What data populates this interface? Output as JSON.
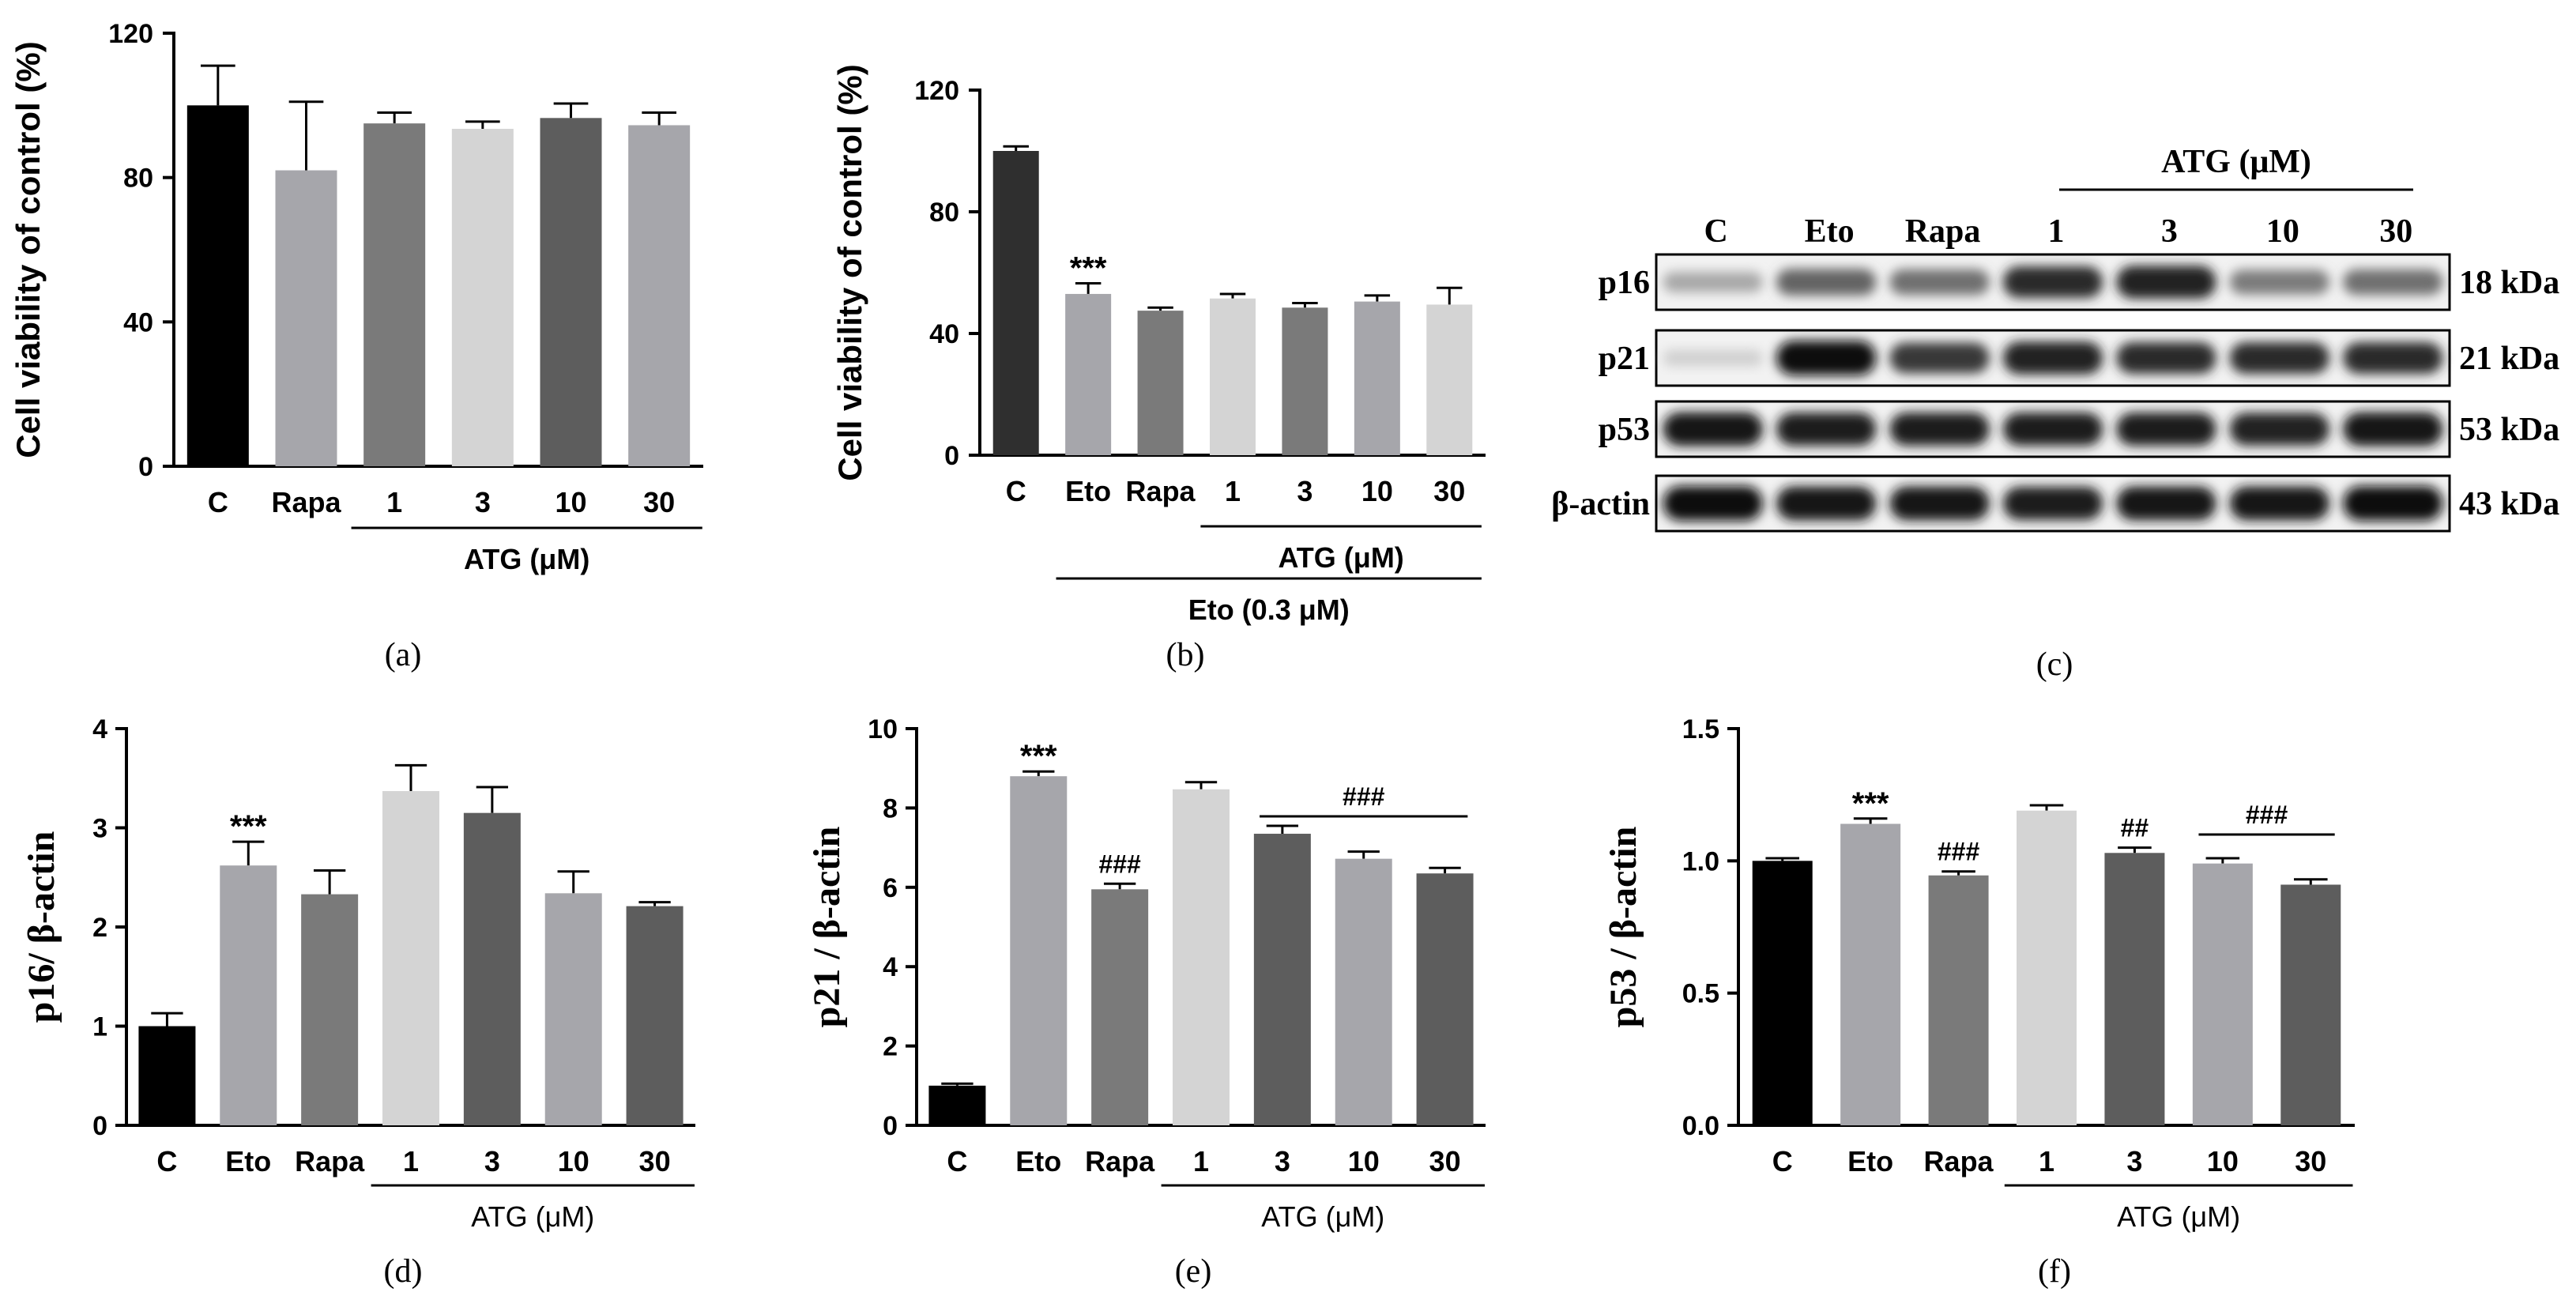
{
  "charts": [
    {
      "type": "bar",
      "caption": "(a)",
      "ylabel": "Cell viability of control (%)",
      "categories": [
        "C",
        "Rapa",
        "1",
        "3",
        "10",
        "30"
      ],
      "values": [
        100,
        82,
        95,
        93.5,
        96.5,
        94.5
      ],
      "errors": [
        11,
        19,
        3,
        2,
        4,
        3.5
      ],
      "colors": [
        "#000000",
        "#a6a6ab",
        "#7a7a7a",
        "#d4d4d4",
        "#5d5d5d",
        "#a6a6ab"
      ],
      "ylim": [
        0,
        120
      ],
      "yticks": [
        0,
        40,
        80,
        120
      ],
      "annotations": [],
      "groups": [
        {
          "label": "ATG (μM)",
          "from": 2,
          "to": 5
        }
      ]
    },
    {
      "type": "bar",
      "caption": "(b)",
      "ylabel": "Cell viability of control (%)",
      "categories": [
        "C",
        "Eto",
        "Rapa",
        "1",
        "3",
        "10",
        "30"
      ],
      "values": [
        100,
        53,
        47.5,
        51.5,
        48.5,
        50.5,
        49.5
      ],
      "errors": [
        1.5,
        3.5,
        1,
        1.5,
        1.5,
        2,
        5.5
      ],
      "colors": [
        "#2f2f2f",
        "#a6a6ab",
        "#7a7a7a",
        "#d4d4d4",
        "#7a7a7a",
        "#a6a6ab",
        "#d4d4d4"
      ],
      "ylim": [
        0,
        120
      ],
      "yticks": [
        0,
        40,
        80,
        120
      ],
      "annotations": [
        {
          "bar": 1,
          "text": "***"
        }
      ],
      "groups": [
        {
          "label": "ATG (μM)",
          "from": 3,
          "to": 6
        },
        {
          "label": "Eto (0.3 μM)",
          "from": 1,
          "to": 6
        }
      ]
    },
    {
      "type": "bar",
      "caption": "(d)",
      "ylabel": "p16/ β-actin",
      "categories": [
        "C",
        "Eto",
        "Rapa",
        "1",
        "3",
        "10",
        "30"
      ],
      "values": [
        1.0,
        2.62,
        2.33,
        3.37,
        3.15,
        2.34,
        2.21
      ],
      "errors": [
        0.13,
        0.24,
        0.24,
        0.26,
        0.26,
        0.22,
        0.04
      ],
      "colors": [
        "#000000",
        "#a6a6ab",
        "#7a7a7a",
        "#d4d4d4",
        "#5d5d5d",
        "#a6a6ab",
        "#5d5d5d"
      ],
      "ylim": [
        0,
        4
      ],
      "yticks": [
        0,
        1,
        2,
        3,
        4
      ],
      "annotations": [
        {
          "bar": 1,
          "text": "***"
        }
      ],
      "groups": [
        {
          "label": "ATG (μM)",
          "from": 3,
          "to": 6
        }
      ]
    },
    {
      "type": "bar",
      "caption": "(e)",
      "ylabel": "p21 / β-actin",
      "categories": [
        "C",
        "Eto",
        "Rapa",
        "1",
        "3",
        "10",
        "30"
      ],
      "values": [
        1.0,
        8.8,
        5.95,
        8.47,
        7.35,
        6.72,
        6.35
      ],
      "errors": [
        0.05,
        0.12,
        0.14,
        0.18,
        0.2,
        0.18,
        0.14
      ],
      "colors": [
        "#000000",
        "#a6a6ab",
        "#7a7a7a",
        "#d4d4d4",
        "#5d5d5d",
        "#a6a6ab",
        "#5d5d5d"
      ],
      "ylim": [
        0,
        10
      ],
      "yticks": [
        0,
        2,
        4,
        6,
        8,
        10
      ],
      "annotations": [
        {
          "bar": 1,
          "text": "***"
        },
        {
          "bar": 2,
          "text": "###"
        }
      ],
      "sigline": {
        "from": 4,
        "to": 6,
        "text": "###"
      },
      "groups": [
        {
          "label": "ATG (μM)",
          "from": 3,
          "to": 6
        }
      ]
    },
    {
      "type": "bar",
      "caption": "(f)",
      "ylabel": "p53 / β-actin",
      "categories": [
        "C",
        "Eto",
        "Rapa",
        "1",
        "3",
        "10",
        "30"
      ],
      "values": [
        1.0,
        1.14,
        0.945,
        1.19,
        1.03,
        0.99,
        0.91
      ],
      "errors": [
        0.01,
        0.02,
        0.015,
        0.02,
        0.02,
        0.02,
        0.02
      ],
      "colors": [
        "#000000",
        "#a6a6ab",
        "#7a7a7a",
        "#d4d4d4",
        "#5d5d5d",
        "#a6a6ab",
        "#5d5d5d"
      ],
      "ylim": [
        0,
        1.5
      ],
      "yticks": [
        "0.0",
        "0.5",
        "1.0",
        "1.5"
      ],
      "annotations": [
        {
          "bar": 1,
          "text": "***"
        },
        {
          "bar": 2,
          "text": "###"
        },
        {
          "bar": 4,
          "text": "##"
        }
      ],
      "sigline": {
        "from": 5,
        "to": 6,
        "text": "###"
      },
      "groups": [
        {
          "label": "ATG (μM)",
          "from": 3,
          "to": 6
        }
      ]
    }
  ],
  "blot": {
    "caption": "(c)",
    "header": "ATG (μM)",
    "lanes": [
      "C",
      "Eto",
      "Rapa",
      "1",
      "3",
      "10",
      "30"
    ],
    "rows": [
      {
        "name": "p16",
        "kda": "18 kDa",
        "intensity": [
          0.3,
          0.6,
          0.55,
          0.85,
          0.9,
          0.5,
          0.55
        ]
      },
      {
        "name": "p21",
        "kda": "21 kDa",
        "intensity": [
          0.12,
          1.0,
          0.8,
          0.9,
          0.85,
          0.85,
          0.85
        ]
      },
      {
        "name": "p53",
        "kda": "53 kDa",
        "intensity": [
          0.95,
          0.92,
          0.92,
          0.92,
          0.92,
          0.9,
          0.95
        ]
      },
      {
        "name": "β-actin",
        "kda": "43 kDa",
        "intensity": [
          1.0,
          0.95,
          0.95,
          0.92,
          0.95,
          0.95,
          1.0
        ]
      }
    ]
  }
}
